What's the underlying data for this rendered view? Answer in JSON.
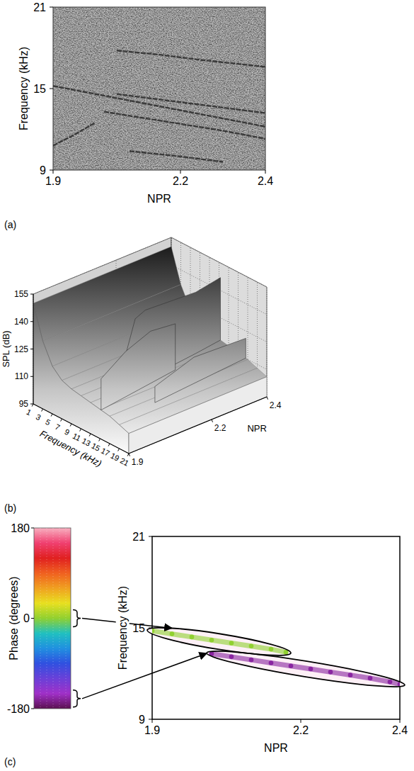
{
  "chart_data": [
    {
      "type": "line",
      "panel_label": "(a)",
      "x_label": "NPR",
      "y_label": "Frequency (kHz)",
      "xlim": [
        1.9,
        2.4
      ],
      "xticks": [
        1.9,
        2.2,
        2.4
      ],
      "ylim": [
        9,
        21
      ],
      "yticks": [
        9,
        15,
        21
      ],
      "color": "#2a2a2a",
      "series": [
        {
          "x": [
            1.9,
            2.0,
            2.1,
            2.2,
            2.3,
            2.4
          ],
          "values": [
            15.2,
            14.6,
            14.0,
            13.4,
            12.8,
            12.2
          ]
        },
        {
          "x": [
            2.02,
            2.1,
            2.2,
            2.3,
            2.4
          ],
          "values": [
            13.3,
            12.9,
            12.4,
            11.9,
            11.3
          ]
        },
        {
          "x": [
            1.9,
            1.95,
            2.0
          ],
          "values": [
            10.8,
            11.6,
            12.5
          ]
        },
        {
          "x": [
            2.05,
            2.15,
            2.25,
            2.4
          ],
          "values": [
            17.8,
            17.5,
            17.1,
            16.6
          ]
        },
        {
          "x": [
            2.05,
            2.2,
            2.4
          ],
          "values": [
            14.6,
            14.0,
            13.2
          ]
        },
        {
          "x": [
            2.08,
            2.2,
            2.3
          ],
          "values": [
            10.4,
            10.0,
            9.6
          ]
        }
      ]
    },
    {
      "type": "surface3d",
      "panel_label": "(b)",
      "x_label": "NPR",
      "y_label": "SPL (dB)",
      "z_label": "Frequency (kHz)",
      "xlim": [
        1.9,
        2.4
      ],
      "xticks": [
        1.9,
        2.2,
        2.4
      ],
      "ylim": [
        95,
        155
      ],
      "yticks": [
        95,
        110,
        125,
        140,
        155
      ],
      "zlim": [
        1,
        21
      ],
      "zticks": [
        1,
        3,
        5,
        7,
        9,
        11,
        13,
        15,
        17,
        19,
        21
      ],
      "grid": true,
      "surface": {
        "z": [
          1,
          3,
          5,
          7,
          9,
          11,
          13,
          15,
          17,
          19,
          21
        ],
        "values": [
          150,
          132,
          121,
          116,
          114,
          113,
          112,
          111,
          110,
          108,
          106
        ]
      },
      "series": [
        {
          "x": [
            1.9,
            2.0,
            2.1,
            2.2
          ],
          "z": [
            15.2,
            14.6,
            14.0,
            13.4
          ],
          "values": [
            128,
            136,
            140,
            137
          ]
        },
        {
          "x": [
            2.02,
            2.06,
            2.1,
            2.2,
            2.3,
            2.4
          ],
          "z": [
            13.3,
            13.1,
            12.9,
            12.4,
            11.9,
            11.3
          ],
          "values": [
            130,
            148,
            150,
            148,
            146,
            147
          ]
        },
        {
          "x": [
            2.05,
            2.2,
            2.4
          ],
          "z": [
            17.8,
            17.3,
            16.6
          ],
          "values": [
            118,
            124,
            121
          ]
        }
      ]
    },
    {
      "type": "scatter",
      "panel_label": "(c)",
      "x_label": "NPR",
      "y_label": "Frequency (kHz)",
      "xlim": [
        1.9,
        2.4
      ],
      "xticks": [
        1.9,
        2.2,
        2.4
      ],
      "ylim": [
        9,
        21
      ],
      "yticks": [
        9,
        15,
        21
      ],
      "colorbar": {
        "label": "Phase (degrees)",
        "range": [
          -180,
          180
        ],
        "ticks": [
          -180,
          0,
          180
        ],
        "colors": [
          "#5a1050",
          "#a030c8",
          "#6a40d8",
          "#3050e0",
          "#2090e0",
          "#20c0c0",
          "#90d030",
          "#e8e020",
          "#f0a020",
          "#f06020",
          "#e02020",
          "#f04070",
          "#f8b0c0"
        ]
      },
      "series": [
        {
          "x": [
            1.9,
            1.94,
            1.98,
            2.02,
            2.06,
            2.1,
            2.14,
            2.17
          ],
          "values": [
            14.8,
            14.6,
            14.4,
            14.2,
            14.0,
            13.8,
            13.6,
            13.4
          ],
          "phase": 0
        },
        {
          "x": [
            2.02,
            2.06,
            2.1,
            2.14,
            2.18,
            2.22,
            2.26,
            2.3,
            2.34,
            2.38,
            2.4
          ],
          "values": [
            13.3,
            13.1,
            12.9,
            12.7,
            12.5,
            12.3,
            12.1,
            11.9,
            11.7,
            11.45,
            11.3
          ],
          "phase": -160
        }
      ]
    }
  ]
}
